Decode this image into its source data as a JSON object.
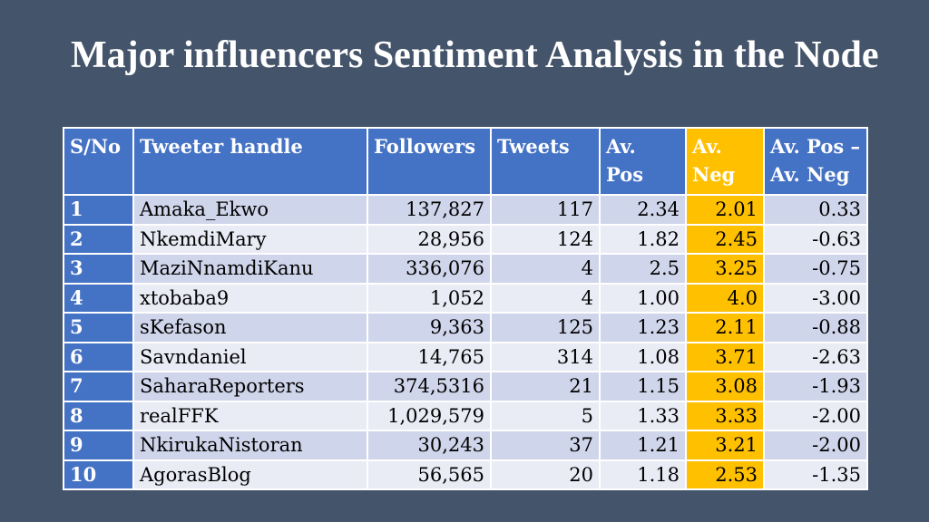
{
  "slide": {
    "title": "Major influencers Sentiment Analysis in the Node"
  },
  "table": {
    "headers": [
      "S/No",
      "Tweeter handle",
      "Followers",
      "Tweets",
      "Av. Pos",
      "Av. Neg",
      "Av. Pos – Av. Neg"
    ],
    "rows": [
      {
        "sno": "1",
        "handle": "Amaka_Ekwo",
        "followers": "137,827",
        "tweets": "117",
        "av_pos": "2.34",
        "av_neg": "2.01",
        "diff": "0.33"
      },
      {
        "sno": "2",
        "handle": "NkemdiMary",
        "followers": "28,956",
        "tweets": "124",
        "av_pos": "1.82",
        "av_neg": "2.45",
        "diff": "-0.63"
      },
      {
        "sno": "3",
        "handle": "MaziNnamdiKanu",
        "followers": "336,076",
        "tweets": "4",
        "av_pos": "2.5",
        "av_neg": "3.25",
        "diff": "-0.75"
      },
      {
        "sno": "4",
        "handle": "xtobaba9",
        "followers": "1,052",
        "tweets": "4",
        "av_pos": "1.00",
        "av_neg": "4.0",
        "diff": "-3.00"
      },
      {
        "sno": "5",
        "handle": "sKefason",
        "followers": "9,363",
        "tweets": "125",
        "av_pos": "1.23",
        "av_neg": "2.11",
        "diff": "-0.88"
      },
      {
        "sno": "6",
        "handle": "Savndaniel",
        "followers": "14,765",
        "tweets": "314",
        "av_pos": "1.08",
        "av_neg": "3.71",
        "diff": "-2.63"
      },
      {
        "sno": "7",
        "handle": "SaharaReporters",
        "followers": "374,5316",
        "tweets": "21",
        "av_pos": "1.15",
        "av_neg": "3.08",
        "diff": "-1.93"
      },
      {
        "sno": "8",
        "handle": "realFFK",
        "followers": "1,029,579",
        "tweets": "5",
        "av_pos": "1.33",
        "av_neg": "3.33",
        "diff": "-2.00"
      },
      {
        "sno": "9",
        "handle": "NkirukaNistoran",
        "followers": "30,243",
        "tweets": "37",
        "av_pos": "1.21",
        "av_neg": "3.21",
        "diff": "-2.00"
      },
      {
        "sno": "10",
        "handle": "AgorasBlog",
        "followers": "56,565",
        "tweets": "20",
        "av_pos": "1.18",
        "av_neg": "2.53",
        "diff": "-1.35"
      }
    ]
  },
  "colors": {
    "background": "#44546a",
    "header": "#4472c4",
    "highlight": "#ffc000",
    "row_odd": "#cfd5ea",
    "row_even": "#e9ebf5"
  }
}
